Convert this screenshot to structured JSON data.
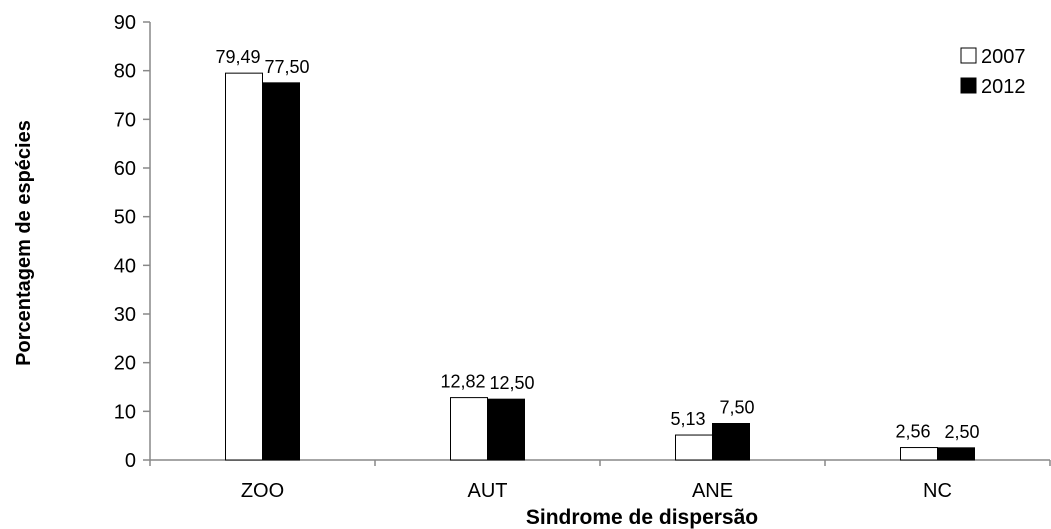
{
  "chart_data": {
    "type": "bar",
    "title": "",
    "xlabel": "Sindrome  de dispersão",
    "ylabel": "Porcentagem de espécies",
    "categories": [
      "ZOO",
      "AUT",
      "ANE",
      "NC"
    ],
    "ylim": [
      0,
      90
    ],
    "yticks": [
      "0",
      "10",
      "20",
      "30",
      "40",
      "50",
      "60",
      "70",
      "80",
      "90"
    ],
    "grid": false,
    "legend_position": "top-right",
    "series": [
      {
        "name": "2007",
        "values": [
          79.49,
          12.82,
          5.13,
          2.56
        ],
        "labels": [
          "79,49",
          "12,82",
          "5,13",
          "2,56"
        ],
        "fill": "#ffffff",
        "stroke": "#000000"
      },
      {
        "name": "2012",
        "values": [
          77.5,
          12.5,
          7.5,
          2.5
        ],
        "labels": [
          "77,50",
          "12,50",
          "7,50",
          "2,50"
        ],
        "fill": "#000000",
        "stroke": "#000000"
      }
    ]
  }
}
